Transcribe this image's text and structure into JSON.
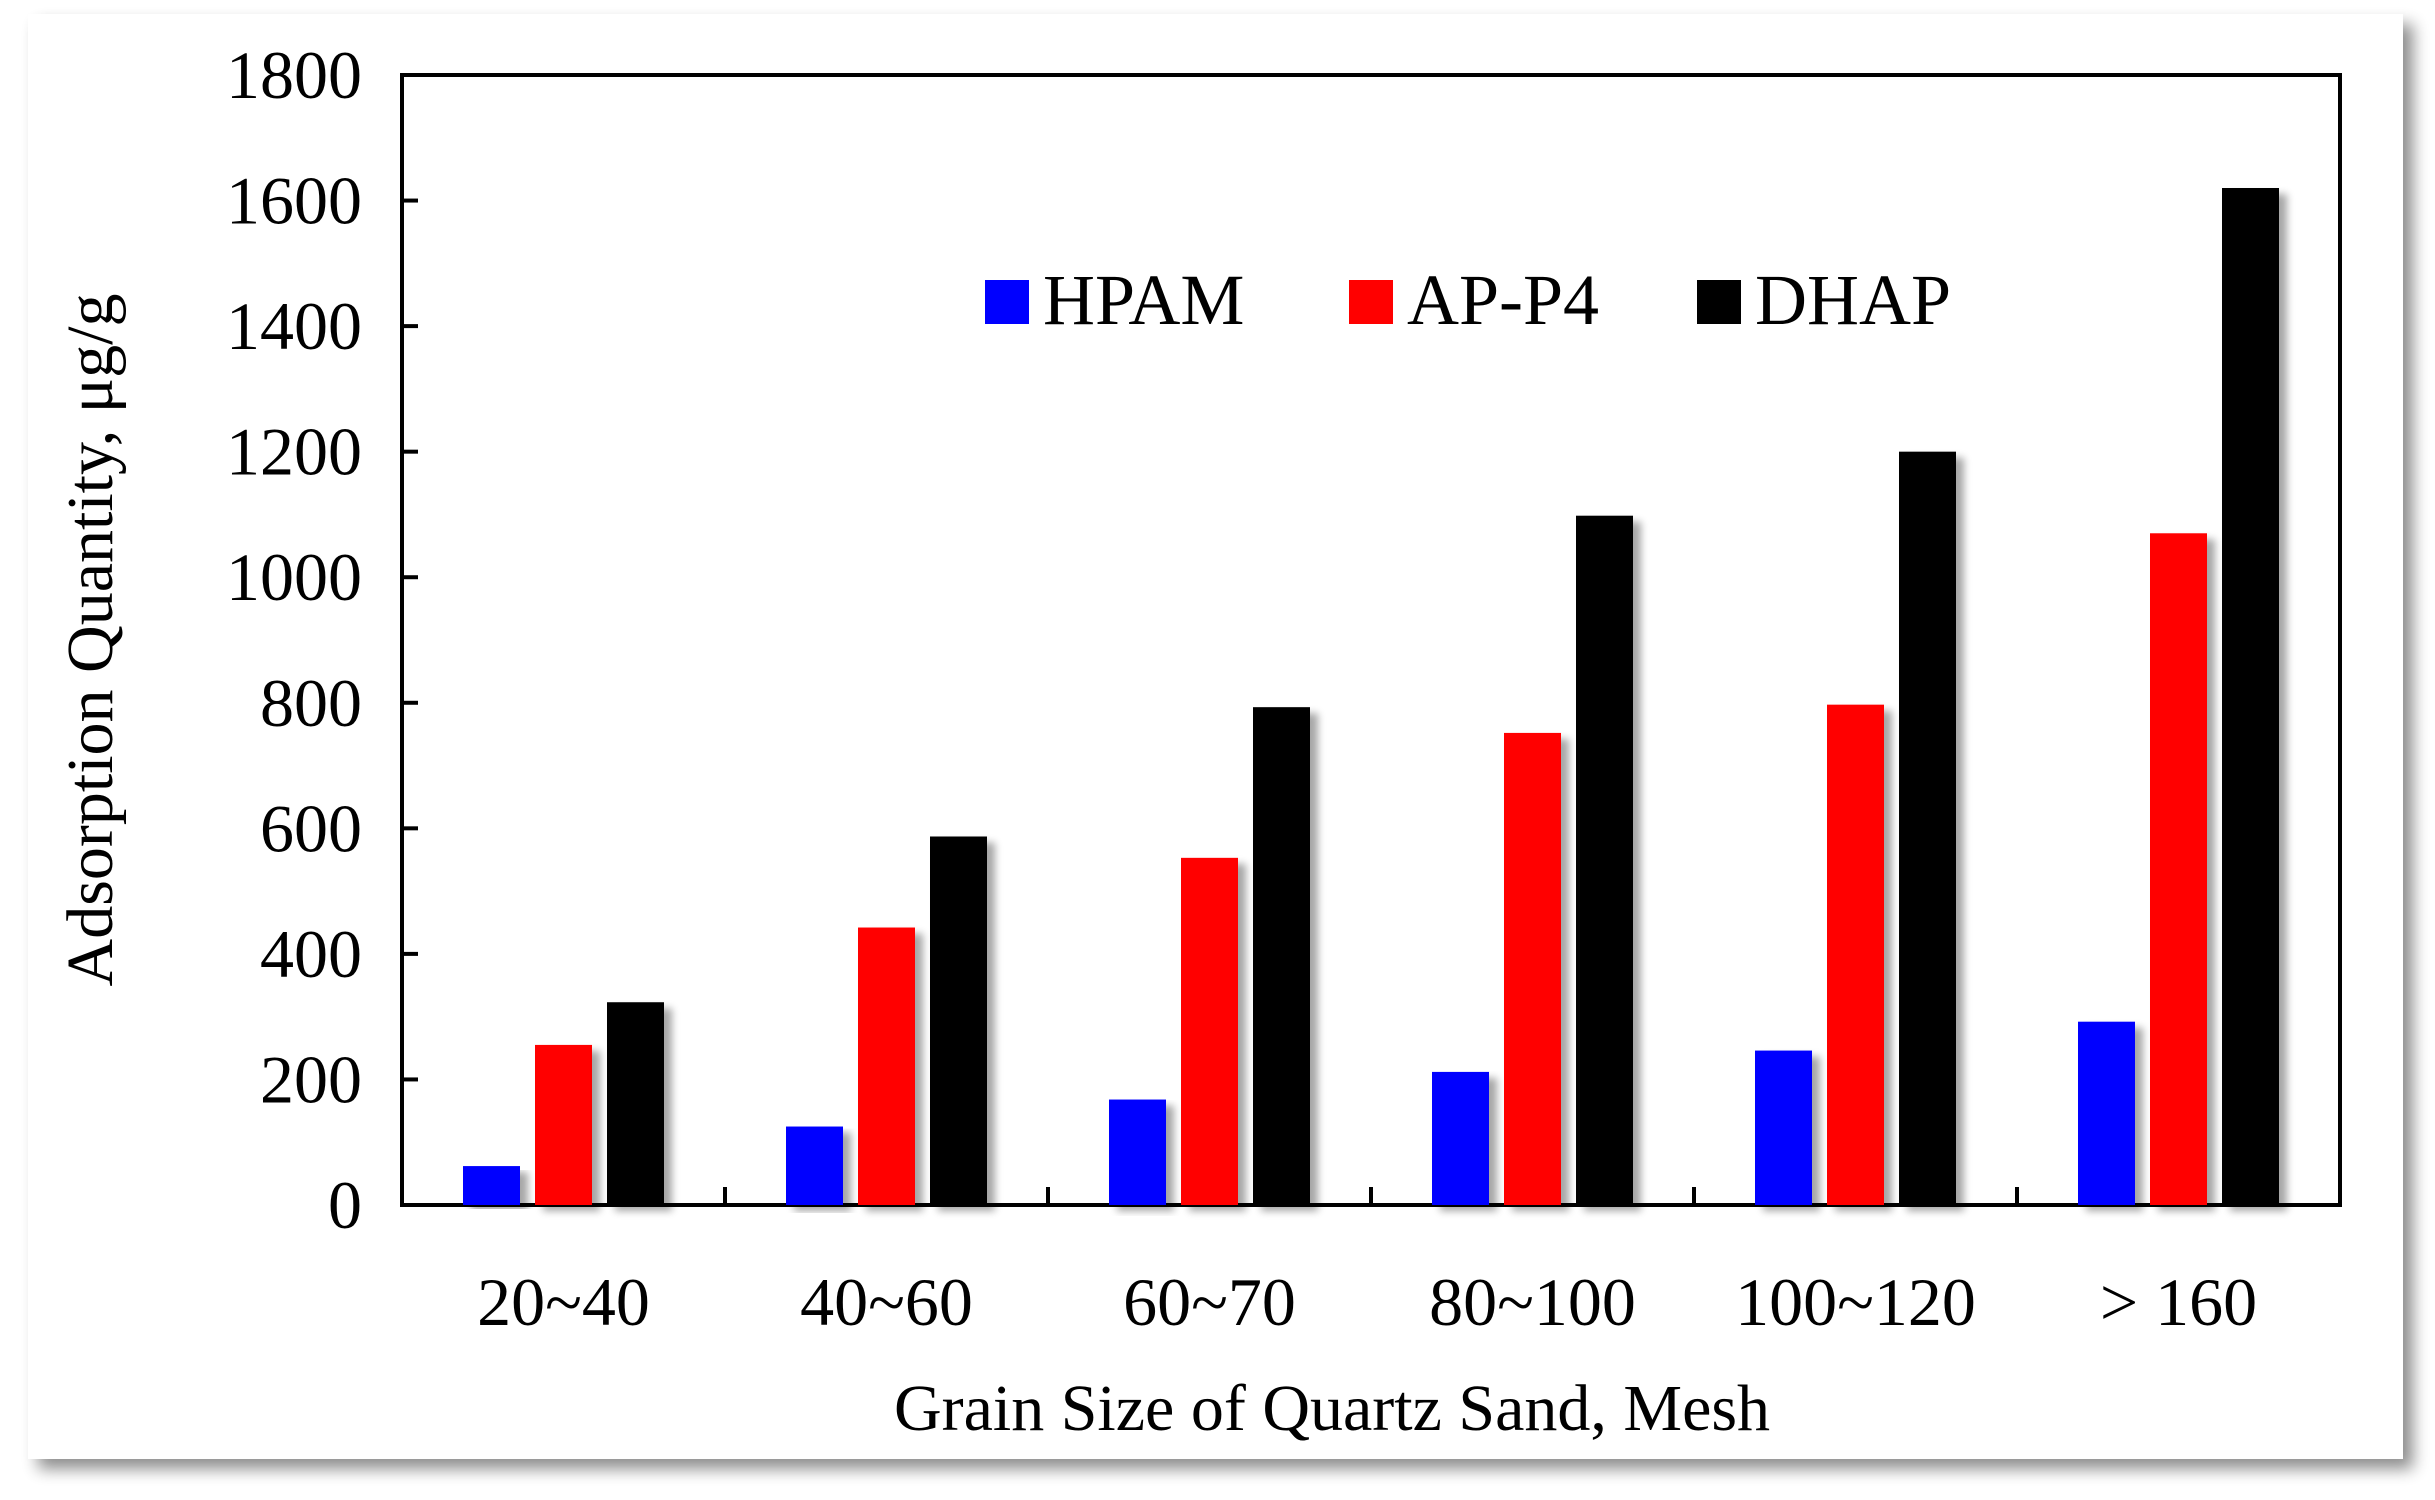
{
  "chart_data": {
    "type": "bar",
    "title": "",
    "xlabel": "Grain Size of Quartz Sand, Mesh",
    "ylabel": "Adsorption Quantity, μg/g",
    "ylim": [
      0,
      1800
    ],
    "yticks": [
      "0",
      "200",
      "400",
      "600",
      "800",
      "1000",
      "1200",
      "1400",
      "1600",
      "1800"
    ],
    "categories": [
      "20~40",
      "40~60",
      "60~70",
      "80~100",
      "100~120",
      "> 160"
    ],
    "series": [
      {
        "name": "HPAM",
        "color": "#0000ff",
        "values": [
          62,
          125,
          168,
          212,
          246,
          292
        ]
      },
      {
        "name": "AP-P4",
        "color": "#ff0000",
        "values": [
          255,
          442,
          553,
          752,
          797,
          1070
        ]
      },
      {
        "name": "DHAP",
        "color": "#000000",
        "values": [
          323,
          587,
          793,
          1098,
          1200,
          1620
        ]
      }
    ],
    "legend_position": "top-center"
  }
}
